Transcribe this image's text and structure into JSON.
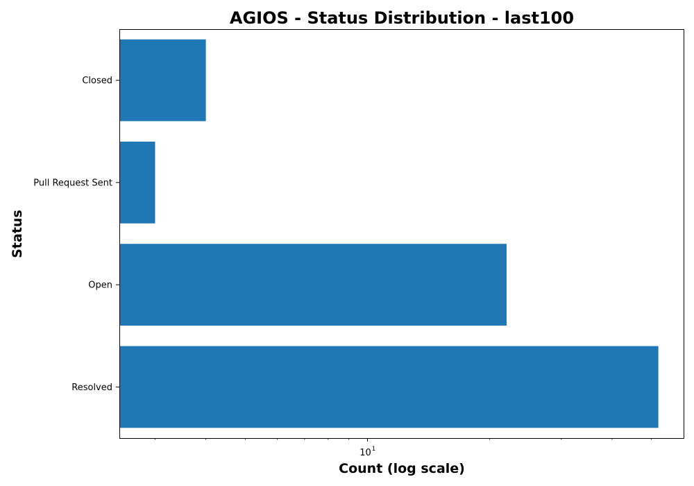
{
  "chart_data": {
    "type": "bar",
    "orientation": "horizontal",
    "title": "AGIOS - Status Distribution - last100",
    "xlabel": "Count (log scale)",
    "ylabel": "Status",
    "x_scale": "log",
    "xlim": [
      2.45,
      60
    ],
    "categories": [
      "Resolved",
      "Open",
      "Pull Request Sent",
      "Closed"
    ],
    "values": [
      52,
      22,
      3,
      4
    ],
    "x_major_ticks": [
      {
        "value": 10,
        "base": "10",
        "exponent": "1"
      }
    ],
    "x_minor_ticks": [
      3,
      4,
      5,
      6,
      7,
      8,
      9,
      20,
      30,
      40,
      50
    ],
    "bar_color": "#1f77b4",
    "grid": false,
    "legend": "none"
  }
}
